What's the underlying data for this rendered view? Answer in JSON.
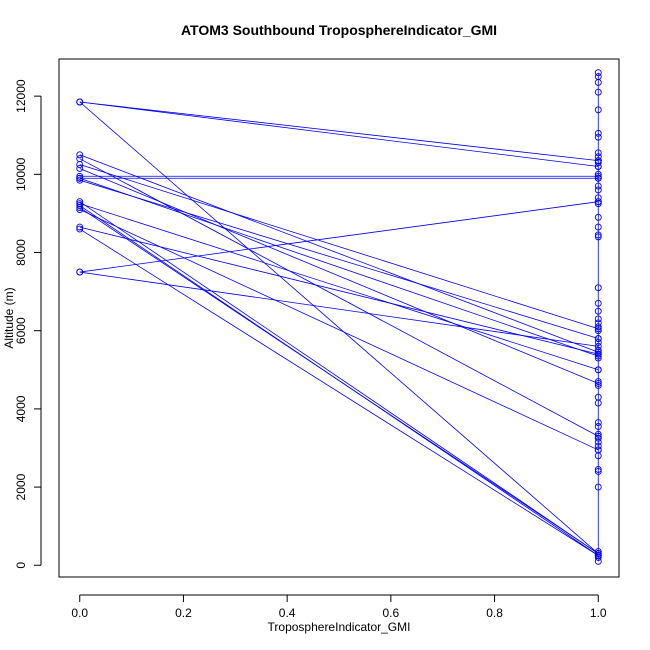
{
  "chart_data": {
    "type": "line",
    "title": "ATOM3 Southbound TroposphereIndicator_GMI",
    "xlabel": "TroposphereIndicator_GMI",
    "ylabel": "Altitude (m)",
    "xlim": [
      -0.04,
      1.04
    ],
    "ylim": [
      -300,
      12950
    ],
    "xticks": [
      "0.0",
      "0.2",
      "0.4",
      "0.6",
      "0.8",
      "1.0"
    ],
    "xtick_values": [
      0,
      0.2,
      0.4,
      0.6,
      0.8,
      1.0
    ],
    "yticks": [
      "0",
      "2000",
      "4000",
      "6000",
      "8000",
      "10000",
      "12000"
    ],
    "ytick_values": [
      0,
      2000,
      4000,
      6000,
      8000,
      10000,
      12000
    ],
    "color": "#0000ff",
    "marker": "open-circle",
    "grid": false,
    "series": [
      {
        "points": [
          [
            1,
            12600
          ],
          [
            1,
            12500
          ],
          [
            1,
            12350
          ],
          [
            1,
            12100
          ],
          [
            1,
            11650
          ],
          [
            1,
            11050
          ],
          [
            1,
            10950
          ],
          [
            1,
            10550
          ],
          [
            1,
            10450
          ],
          [
            1,
            10350
          ],
          [
            1,
            10300
          ],
          [
            1,
            10200
          ]
        ]
      },
      {
        "points": [
          [
            1,
            10200
          ],
          [
            0,
            11850
          ],
          [
            1,
            10350
          ]
        ]
      },
      {
        "points": [
          [
            1,
            10350
          ],
          [
            1,
            10000
          ],
          [
            1,
            9900
          ],
          [
            1,
            9700
          ],
          [
            1,
            9600
          ],
          [
            1,
            9400
          ],
          [
            1,
            9300
          ],
          [
            1,
            9250
          ],
          [
            1,
            8900
          ],
          [
            1,
            8650
          ],
          [
            1,
            8450
          ],
          [
            1,
            8400
          ],
          [
            1,
            7100
          ],
          [
            1,
            6700
          ],
          [
            1,
            6500
          ],
          [
            1,
            6300
          ],
          [
            1,
            6200
          ],
          [
            1,
            6100
          ],
          [
            1,
            6000
          ],
          [
            1,
            5800
          ],
          [
            1,
            5700
          ],
          [
            1,
            5500
          ],
          [
            1,
            5400
          ],
          [
            1,
            5300
          ],
          [
            1,
            5000
          ],
          [
            1,
            4700
          ],
          [
            1,
            4600
          ],
          [
            1,
            4300
          ],
          [
            1,
            4150
          ],
          [
            1,
            3650
          ],
          [
            1,
            3550
          ],
          [
            1,
            3350
          ],
          [
            1,
            3250
          ],
          [
            1,
            3150
          ],
          [
            1,
            3050
          ],
          [
            1,
            2950
          ],
          [
            1,
            2800
          ],
          [
            1,
            2450
          ],
          [
            1,
            2400
          ],
          [
            1,
            2000
          ],
          [
            1,
            350
          ],
          [
            1,
            250
          ],
          [
            1,
            200
          ],
          [
            1,
            100
          ]
        ]
      },
      {
        "points": [
          [
            0,
            11850
          ],
          [
            1,
            300
          ]
        ]
      },
      {
        "points": [
          [
            0,
            10500
          ],
          [
            1,
            5450
          ]
        ]
      },
      {
        "points": [
          [
            0,
            10400
          ],
          [
            1,
            3300
          ]
        ]
      },
      {
        "points": [
          [
            0,
            10250
          ],
          [
            1,
            6050
          ]
        ]
      },
      {
        "points": [
          [
            0,
            10150
          ],
          [
            1,
            4650
          ]
        ]
      },
      {
        "points": [
          [
            0,
            9950
          ],
          [
            1,
            9950
          ]
        ]
      },
      {
        "points": [
          [
            0,
            9900
          ],
          [
            1,
            9900
          ]
        ]
      },
      {
        "points": [
          [
            0,
            9900
          ],
          [
            1,
            5350
          ]
        ]
      },
      {
        "points": [
          [
            0,
            9850
          ],
          [
            1,
            5800
          ]
        ]
      },
      {
        "points": [
          [
            0,
            9300
          ],
          [
            1,
            300
          ]
        ]
      },
      {
        "points": [
          [
            0,
            9250
          ],
          [
            1,
            5000
          ]
        ]
      },
      {
        "points": [
          [
            0,
            9200
          ],
          [
            1,
            250
          ]
        ]
      },
      {
        "points": [
          [
            0,
            9150
          ],
          [
            1,
            300
          ]
        ]
      },
      {
        "points": [
          [
            0,
            9100
          ],
          [
            1,
            2950
          ]
        ]
      },
      {
        "points": [
          [
            0,
            8650
          ],
          [
            1,
            5400
          ]
        ]
      },
      {
        "points": [
          [
            0,
            8600
          ],
          [
            1,
            250
          ]
        ]
      },
      {
        "points": [
          [
            0,
            7500
          ],
          [
            1,
            9300
          ]
        ]
      },
      {
        "points": [
          [
            0,
            7500
          ],
          [
            1,
            5600
          ]
        ]
      }
    ]
  }
}
